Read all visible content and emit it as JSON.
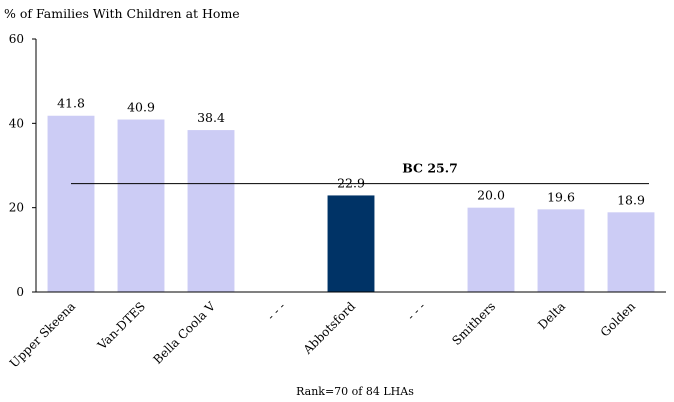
{
  "chart_data": {
    "type": "bar",
    "title": "% of Families With Children at Home",
    "ylim": [
      0,
      60
    ],
    "yticks": [
      0,
      20,
      40,
      60
    ],
    "categories": [
      "Upper Skeena",
      "Van-DTES",
      "Bella Coola V",
      "- - -",
      "Abbotsford",
      "- - -",
      "Smithers",
      "Delta",
      "Golden"
    ],
    "values": [
      41.8,
      40.9,
      38.4,
      null,
      22.9,
      null,
      20.0,
      19.6,
      18.9
    ],
    "value_labels": [
      "41.8",
      "40.9",
      "38.4",
      "",
      "22.9",
      "",
      "20.0",
      "19.6",
      "18.9"
    ],
    "highlight_index": 4,
    "colors": {
      "bar": "#ccccf5",
      "highlight": "#003366",
      "axis": "#000000"
    },
    "reference_line": {
      "label": "BC 25.7",
      "value": 25.7
    },
    "footnote": "Rank=70 of 84 LHAs"
  }
}
